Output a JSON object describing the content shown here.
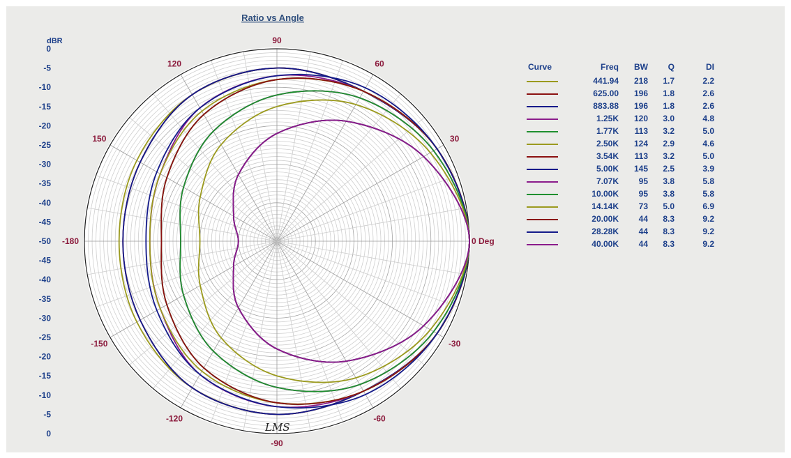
{
  "chart_data": {
    "type": "polar",
    "title": "Ratio vs Angle",
    "radial_unit": "dBR",
    "radial_range": [
      -50,
      0
    ],
    "angular_labels": [
      "0 Deg",
      "30",
      "60",
      "90",
      "120",
      "150",
      "-180",
      "-150",
      "-120",
      "-90",
      "-60",
      "-30"
    ],
    "left_scale_labels": [
      "0",
      "-5",
      "-10",
      "-15",
      "-20",
      "-25",
      "-30",
      "-35",
      "-40",
      "-45",
      "-50",
      "-45",
      "-40",
      "-35",
      "-30",
      "-25",
      "-20",
      "-15",
      "-10",
      "-5",
      "0"
    ],
    "grid": true,
    "legend_placement": "right",
    "legend_headers": {
      "curve": "Curve",
      "freq": "Freq",
      "bw": "BW",
      "q": "Q",
      "di": "DI"
    },
    "series": [
      {
        "freq": "441.94",
        "bw": "218",
        "q": "1.7",
        "di": "2.2",
        "color": "#9b9a1e",
        "points": [
          [
            0,
            0
          ],
          [
            30,
            -2
          ],
          [
            60,
            -5
          ],
          [
            90,
            -5
          ],
          [
            120,
            -6
          ],
          [
            150,
            -8
          ],
          [
            180,
            -9
          ],
          [
            -150,
            -8
          ],
          [
            -120,
            -6
          ],
          [
            -90,
            -5
          ],
          [
            -60,
            -5
          ],
          [
            -30,
            -2
          ]
        ]
      },
      {
        "freq": "625.00",
        "bw": "196",
        "q": "1.8",
        "di": "2.6",
        "color": "#8b1010",
        "points": [
          [
            0,
            0
          ],
          [
            30,
            -2
          ],
          [
            60,
            -5
          ],
          [
            90,
            -5
          ],
          [
            120,
            -6
          ],
          [
            150,
            -9
          ],
          [
            180,
            -10
          ],
          [
            -150,
            -9
          ],
          [
            -120,
            -6
          ],
          [
            -90,
            -5
          ],
          [
            -60,
            -5
          ],
          [
            -30,
            -2
          ]
        ]
      },
      {
        "freq": "883.88",
        "bw": "196",
        "q": "1.8",
        "di": "2.6",
        "color": "#141a8a",
        "points": [
          [
            0,
            0
          ],
          [
            30,
            -2
          ],
          [
            60,
            -5
          ],
          [
            90,
            -5
          ],
          [
            120,
            -6
          ],
          [
            150,
            -9
          ],
          [
            180,
            -10
          ],
          [
            -150,
            -9
          ],
          [
            -120,
            -6
          ],
          [
            -90,
            -5
          ],
          [
            -60,
            -5
          ],
          [
            -30,
            -2
          ]
        ]
      },
      {
        "freq": "1.25K",
        "bw": "120",
        "q": "3.0",
        "di": "4.8",
        "color": "#8b1c8b",
        "points": [
          [
            0,
            0
          ],
          [
            30,
            -2
          ],
          [
            60,
            -5
          ],
          [
            90,
            -7
          ],
          [
            120,
            -10
          ],
          [
            150,
            -15
          ],
          [
            180,
            -17
          ],
          [
            -150,
            -15
          ],
          [
            -120,
            -10
          ],
          [
            -90,
            -7
          ],
          [
            -60,
            -5
          ],
          [
            -30,
            -2
          ]
        ]
      },
      {
        "freq": "1.77K",
        "bw": "113",
        "q": "3.2",
        "di": "5.0",
        "color": "#1f8f2f",
        "points": [
          [
            0,
            0
          ],
          [
            30,
            -2
          ],
          [
            60,
            -5
          ],
          [
            90,
            -8
          ],
          [
            120,
            -12
          ],
          [
            150,
            -17
          ],
          [
            180,
            -20
          ],
          [
            -150,
            -17
          ],
          [
            -120,
            -12
          ],
          [
            -90,
            -8
          ],
          [
            -60,
            -5
          ],
          [
            -30,
            -2
          ]
        ]
      },
      {
        "freq": "2.50K",
        "bw": "124",
        "q": "2.9",
        "di": "4.6",
        "color": "#9b9a1e",
        "points": [
          [
            0,
            0
          ],
          [
            30,
            -2
          ],
          [
            60,
            -5
          ],
          [
            90,
            -8
          ],
          [
            120,
            -11
          ],
          [
            150,
            -15
          ],
          [
            180,
            -17
          ],
          [
            -150,
            -15
          ],
          [
            -120,
            -11
          ],
          [
            -90,
            -8
          ],
          [
            -60,
            -5
          ],
          [
            -30,
            -2
          ]
        ]
      },
      {
        "freq": "3.54K",
        "bw": "113",
        "q": "3.2",
        "di": "5.0",
        "color": "#8b1010",
        "points": [
          [
            0,
            0
          ],
          [
            30,
            -2
          ],
          [
            60,
            -5
          ],
          [
            90,
            -8
          ],
          [
            120,
            -12
          ],
          [
            150,
            -17
          ],
          [
            180,
            -20
          ],
          [
            -150,
            -17
          ],
          [
            -120,
            -12
          ],
          [
            -90,
            -8
          ],
          [
            -60,
            -5
          ],
          [
            -30,
            -2
          ]
        ]
      },
      {
        "freq": "5.00K",
        "bw": "145",
        "q": "2.5",
        "di": "3.9",
        "color": "#141a8a",
        "points": [
          [
            0,
            0
          ],
          [
            30,
            -2
          ],
          [
            60,
            -4
          ],
          [
            90,
            -7
          ],
          [
            120,
            -10
          ],
          [
            150,
            -14
          ],
          [
            180,
            -16
          ],
          [
            -150,
            -14
          ],
          [
            -120,
            -10
          ],
          [
            -90,
            -7
          ],
          [
            -60,
            -4
          ],
          [
            -30,
            -2
          ]
        ]
      },
      {
        "freq": "7.07K",
        "bw": "95",
        "q": "3.8",
        "di": "5.8",
        "color": "#8b1c8b",
        "points": [
          [
            0,
            0
          ],
          [
            30,
            -3
          ],
          [
            60,
            -7
          ],
          [
            90,
            -12
          ],
          [
            120,
            -17
          ],
          [
            150,
            -22
          ],
          [
            180,
            -25
          ],
          [
            -150,
            -22
          ],
          [
            -120,
            -17
          ],
          [
            -90,
            -12
          ],
          [
            -60,
            -7
          ],
          [
            -30,
            -3
          ]
        ]
      },
      {
        "freq": "10.00K",
        "bw": "95",
        "q": "3.8",
        "di": "5.8",
        "color": "#1f8f2f",
        "points": [
          [
            0,
            0
          ],
          [
            30,
            -3
          ],
          [
            60,
            -7
          ],
          [
            90,
            -12
          ],
          [
            120,
            -17
          ],
          [
            150,
            -22
          ],
          [
            180,
            -25
          ],
          [
            -150,
            -22
          ],
          [
            -120,
            -17
          ],
          [
            -90,
            -12
          ],
          [
            -60,
            -7
          ],
          [
            -30,
            -3
          ]
        ]
      },
      {
        "freq": "14.14K",
        "bw": "73",
        "q": "5.0",
        "di": "6.9",
        "color": "#9b9a1e",
        "points": [
          [
            0,
            0
          ],
          [
            30,
            -4
          ],
          [
            60,
            -9
          ],
          [
            90,
            -15
          ],
          [
            120,
            -21
          ],
          [
            150,
            -27
          ],
          [
            180,
            -30
          ],
          [
            -150,
            -27
          ],
          [
            -120,
            -21
          ],
          [
            -90,
            -15
          ],
          [
            -60,
            -9
          ],
          [
            -30,
            -4
          ]
        ]
      },
      {
        "freq": "20.00K",
        "bw": "44",
        "q": "8.3",
        "di": "9.2",
        "color": "#8b1010",
        "points": [
          [
            0,
            0
          ],
          [
            30,
            -6
          ],
          [
            60,
            -14
          ],
          [
            90,
            -22
          ],
          [
            120,
            -30
          ],
          [
            150,
            -37
          ],
          [
            180,
            -40
          ],
          [
            -150,
            -37
          ],
          [
            -120,
            -30
          ],
          [
            -90,
            -22
          ],
          [
            -60,
            -14
          ],
          [
            -30,
            -6
          ]
        ]
      },
      {
        "freq": "28.28K",
        "bw": "44",
        "q": "8.3",
        "di": "9.2",
        "color": "#141a8a",
        "points": [
          [
            0,
            0
          ],
          [
            30,
            -6
          ],
          [
            60,
            -14
          ],
          [
            90,
            -22
          ],
          [
            120,
            -30
          ],
          [
            150,
            -37
          ],
          [
            180,
            -40
          ],
          [
            -150,
            -37
          ],
          [
            -120,
            -30
          ],
          [
            -90,
            -22
          ],
          [
            -60,
            -14
          ],
          [
            -30,
            -6
          ]
        ]
      },
      {
        "freq": "40.00K",
        "bw": "44",
        "q": "8.3",
        "di": "9.2",
        "color": "#8b1c8b",
        "points": [
          [
            0,
            0
          ],
          [
            30,
            -6
          ],
          [
            60,
            -14
          ],
          [
            90,
            -22
          ],
          [
            120,
            -30
          ],
          [
            150,
            -37
          ],
          [
            180,
            -40
          ],
          [
            -150,
            -37
          ],
          [
            -120,
            -30
          ],
          [
            -90,
            -22
          ],
          [
            -60,
            -14
          ],
          [
            -30,
            -6
          ]
        ]
      }
    ]
  },
  "signature_text": "LMS"
}
